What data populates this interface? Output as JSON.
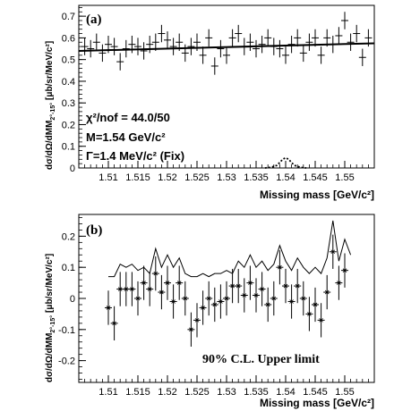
{
  "chart_data": [
    {
      "type": "scatter",
      "panel_label": "(a)",
      "xlabel": "Missing mass [GeV/c²]",
      "ylabel": "dσ/dΩ/dMM",
      "ylabel_sub": "2°-15°",
      "ylabel_units": "[μb/sr/MeV/c²]",
      "xlim": [
        1.505,
        1.555
      ],
      "ylim": [
        0,
        0.75
      ],
      "xticks": [
        1.51,
        1.515,
        1.52,
        1.525,
        1.53,
        1.535,
        1.54,
        1.545,
        1.55
      ],
      "xtick_labels": [
        "1.51",
        "1.515",
        "1.52",
        "1.525",
        "1.53",
        "1.535",
        "1.54",
        "1.545",
        "1.55"
      ],
      "yticks": [
        0,
        0.1,
        0.2,
        0.3,
        0.4,
        0.5,
        0.6,
        0.7
      ],
      "ytick_labels": [
        "0",
        "0.1",
        "0.2",
        "0.3",
        "0.4",
        "0.5",
        "0.6",
        "0.7"
      ],
      "annotations": [
        "χ²/nof = 44.0/50",
        "M=1.54 GeV/c²",
        "Γ=1.4 MeV/c² (Fix)"
      ],
      "fit_line": {
        "x": [
          1.505,
          1.555
        ],
        "y": [
          0.54,
          0.575
        ]
      },
      "peak": {
        "x": [
          1.5365,
          1.5375,
          1.5385,
          1.539,
          1.5395,
          1.54,
          1.5405,
          1.541,
          1.5415,
          1.5425,
          1.5435
        ],
        "y": [
          0.0,
          0.003,
          0.012,
          0.025,
          0.04,
          0.047,
          0.04,
          0.025,
          0.012,
          0.003,
          0.0
        ]
      },
      "points": {
        "x": [
          1.506,
          1.507,
          1.508,
          1.509,
          1.51,
          1.511,
          1.512,
          1.513,
          1.514,
          1.515,
          1.516,
          1.517,
          1.518,
          1.519,
          1.52,
          1.521,
          1.522,
          1.523,
          1.524,
          1.525,
          1.526,
          1.527,
          1.528,
          1.529,
          1.53,
          1.531,
          1.532,
          1.533,
          1.534,
          1.535,
          1.536,
          1.537,
          1.538,
          1.539,
          1.54,
          1.541,
          1.542,
          1.543,
          1.544,
          1.545,
          1.546,
          1.547,
          1.548,
          1.549,
          1.55,
          1.551,
          1.552,
          1.553,
          1.554
        ],
        "y": [
          0.56,
          0.55,
          0.58,
          0.53,
          0.57,
          0.56,
          0.49,
          0.55,
          0.57,
          0.56,
          0.54,
          0.57,
          0.58,
          0.62,
          0.59,
          0.56,
          0.58,
          0.53,
          0.56,
          0.58,
          0.52,
          0.6,
          0.47,
          0.55,
          0.52,
          0.6,
          0.62,
          0.56,
          0.58,
          0.55,
          0.57,
          0.6,
          0.56,
          0.55,
          0.52,
          0.57,
          0.6,
          0.53,
          0.58,
          0.6,
          0.52,
          0.6,
          0.57,
          0.61,
          0.68,
          0.58,
          0.62,
          0.51,
          0.6
        ],
        "err": 0.04
      }
    },
    {
      "type": "line",
      "panel_label": "(b)",
      "xlabel": "Missing mass [GeV/c²]",
      "ylabel": "dσ/dΩ/dMM",
      "ylabel_sub": "2°-15°",
      "ylabel_units": "[μb/sr/MeV/c²]",
      "xlim": [
        1.505,
        1.555
      ],
      "ylim": [
        -0.27,
        0.27
      ],
      "xticks": [
        1.51,
        1.515,
        1.52,
        1.525,
        1.53,
        1.535,
        1.54,
        1.545,
        1.55
      ],
      "xtick_labels": [
        "1.51",
        "1.515",
        "1.52",
        "1.525",
        "1.53",
        "1.535",
        "1.54",
        "1.545",
        "1.55"
      ],
      "yticks": [
        -0.2,
        -0.1,
        0,
        0.1,
        0.2
      ],
      "ytick_labels": [
        "-0.2",
        "-0.1",
        "0",
        "0.1",
        "0.2"
      ],
      "annotations": [
        "90% C.L. Upper limit"
      ],
      "upper_limit": {
        "x": [
          1.51,
          1.511,
          1.512,
          1.513,
          1.514,
          1.515,
          1.516,
          1.517,
          1.518,
          1.519,
          1.52,
          1.521,
          1.522,
          1.523,
          1.524,
          1.525,
          1.526,
          1.527,
          1.528,
          1.529,
          1.53,
          1.531,
          1.532,
          1.533,
          1.534,
          1.535,
          1.536,
          1.537,
          1.538,
          1.539,
          1.54,
          1.541,
          1.542,
          1.543,
          1.544,
          1.545,
          1.546,
          1.547,
          1.548,
          1.549,
          1.55,
          1.551
        ],
        "y": [
          0.07,
          0.07,
          0.11,
          0.1,
          0.11,
          0.09,
          0.1,
          0.08,
          0.16,
          0.1,
          0.14,
          0.1,
          0.13,
          0.08,
          0.07,
          0.07,
          0.08,
          0.07,
          0.08,
          0.08,
          0.09,
          0.08,
          0.12,
          0.1,
          0.14,
          0.1,
          0.12,
          0.09,
          0.11,
          0.17,
          0.12,
          0.09,
          0.13,
          0.1,
          0.08,
          0.1,
          0.08,
          0.13,
          0.25,
          0.12,
          0.19,
          0.14
        ]
      },
      "points": {
        "x": [
          1.51,
          1.511,
          1.512,
          1.513,
          1.514,
          1.515,
          1.516,
          1.517,
          1.518,
          1.519,
          1.52,
          1.521,
          1.522,
          1.523,
          1.524,
          1.525,
          1.526,
          1.527,
          1.528,
          1.529,
          1.53,
          1.531,
          1.532,
          1.533,
          1.534,
          1.535,
          1.536,
          1.537,
          1.538,
          1.539,
          1.54,
          1.541,
          1.542,
          1.543,
          1.544,
          1.545,
          1.546,
          1.547,
          1.548,
          1.549,
          1.55
        ],
        "y": [
          -0.03,
          -0.08,
          0.03,
          0.03,
          0.03,
          0.0,
          0.05,
          0.03,
          0.08,
          0.02,
          0.05,
          -0.01,
          0.05,
          0.0,
          -0.1,
          -0.07,
          -0.03,
          0.0,
          -0.02,
          -0.01,
          0.0,
          0.04,
          0.04,
          0.01,
          0.05,
          0.01,
          0.03,
          -0.02,
          0.0,
          0.1,
          0.04,
          -0.01,
          0.04,
          0.0,
          -0.05,
          -0.02,
          -0.07,
          0.02,
          0.15,
          0.05,
          0.09
        ],
        "err": 0.055
      }
    }
  ]
}
